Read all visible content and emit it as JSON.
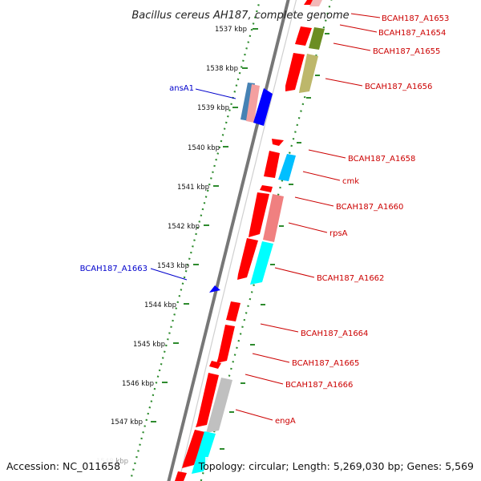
{
  "title": "Bacillus cereus AH187, complete genome",
  "footer": {
    "accession": "Accession: NC_011658",
    "topology": "Topology: circular; Length: 5,269,030 bp; Genes: 5,569"
  },
  "colors": {
    "backbone": "#7a7a7a",
    "forward_label": "#cc0000",
    "reverse_label": "#0000cc",
    "tick": "#2e8b2e"
  },
  "position_labels": [
    "1537 kbp",
    "1538 kbp",
    "1539 kbp",
    "1540 kbp",
    "1541 kbp",
    "1542 kbp",
    "1543 kbp",
    "1544 kbp",
    "1545 kbp",
    "1546 kbp",
    "1547 kbp",
    "1548 kbp"
  ],
  "genes": [
    {
      "label": "BCAH187_A1653",
      "strand": "+",
      "color": "#f2a3a3"
    },
    {
      "label": "BCAH187_A1654",
      "strand": "+",
      "color": "#6b8e23"
    },
    {
      "label": "BCAH187_A1655",
      "strand": "+",
      "color": "#bdb76b"
    },
    {
      "label": "BCAH187_A1656",
      "strand": "+",
      "color": "#ff0000"
    },
    {
      "label": "ansA1",
      "strand": "-",
      "color": "#4682b4"
    },
    {
      "label": "BCAH187_A1658",
      "strand": "+",
      "color": "#ff0000"
    },
    {
      "label": "cmk",
      "strand": "+",
      "color": "#00bfff"
    },
    {
      "label": "BCAH187_A1660",
      "strand": "+",
      "color": "#ff0000"
    },
    {
      "label": "rpsA",
      "strand": "+",
      "color": "#f08080"
    },
    {
      "label": "BCAH187_A1662",
      "strand": "+",
      "color": "#00ffff"
    },
    {
      "label": "BCAH187_A1663",
      "strand": "-",
      "color": "#0000ff"
    },
    {
      "label": "BCAH187_A1664",
      "strand": "+",
      "color": "#ff0000"
    },
    {
      "label": "BCAH187_A1665",
      "strand": "+",
      "color": "#ff0000"
    },
    {
      "label": "BCAH187_A1666",
      "strand": "+",
      "color": "#ff0000"
    },
    {
      "label": "engA",
      "strand": "+",
      "color": "#c0c0c0"
    }
  ]
}
